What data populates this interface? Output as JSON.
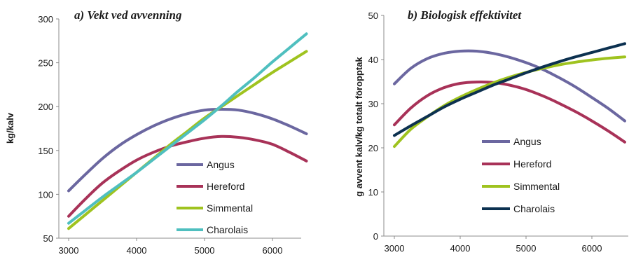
{
  "chart_data": [
    {
      "type": "line",
      "title": "a) Vekt ved avvenning",
      "xlabel": "",
      "ylabel": "kg/kalv",
      "xlim": [
        2900,
        6600
      ],
      "ylim": [
        50,
        300
      ],
      "xticks": [
        "3000",
        "4000",
        "5000",
        "6000"
      ],
      "yticks": [
        "50",
        "100",
        "150",
        "200",
        "250",
        "300"
      ],
      "x": [
        3000,
        3250,
        3500,
        3750,
        4000,
        4250,
        4500,
        4750,
        5000,
        5250,
        5500,
        5750,
        6000,
        6250,
        6500
      ],
      "grid": false,
      "legend_position": "center-right",
      "series": [
        {
          "name": "Angus",
          "color": "#6b67a0",
          "values": [
            104,
            123,
            141,
            156,
            168,
            178,
            186,
            192,
            196,
            197,
            196,
            192,
            186,
            178,
            169
          ]
        },
        {
          "name": "Hereford",
          "color": "#a83258",
          "values": [
            75,
            95,
            113,
            127,
            139,
            148,
            155,
            160,
            164,
            166,
            165,
            162,
            157,
            148,
            138
          ]
        },
        {
          "name": "Simmental",
          "color": "#9fc31f",
          "values": [
            61,
            77,
            93,
            109,
            125,
            141,
            157,
            172,
            187,
            200,
            213,
            226,
            239,
            251,
            263
          ]
        },
        {
          "name": "Charolais",
          "color": "#4fbfbf",
          "values": [
            67,
            82,
            97,
            111,
            125,
            140,
            155,
            170,
            185,
            201,
            218,
            234,
            251,
            267,
            283
          ]
        }
      ]
    },
    {
      "type": "line",
      "title": "b) Biologisk effektivitet",
      "xlabel": "",
      "ylabel": "g avvent kalv/kg totalt föropptak",
      "xlim": [
        2900,
        6600
      ],
      "ylim": [
        0,
        50
      ],
      "xticks": [
        "3000",
        "4000",
        "5000",
        "6000"
      ],
      "yticks": [
        "0",
        "10",
        "20",
        "30",
        "40",
        "50"
      ],
      "x": [
        3000,
        3250,
        3500,
        3750,
        4000,
        4250,
        4500,
        4750,
        5000,
        5250,
        5500,
        5750,
        6000,
        6250,
        6500
      ],
      "grid": false,
      "legend_position": "bottom-center",
      "series": [
        {
          "name": "Angus",
          "color": "#6b67a0",
          "values": [
            34.5,
            38,
            40.2,
            41.4,
            41.9,
            41.9,
            41.4,
            40.5,
            39.3,
            37.8,
            35.9,
            33.8,
            31.4,
            28.9,
            26.1
          ]
        },
        {
          "name": "Hereford",
          "color": "#a83258",
          "values": [
            25.2,
            29,
            31.8,
            33.6,
            34.6,
            34.9,
            34.8,
            34.2,
            33.2,
            31.8,
            30.1,
            28.2,
            26.1,
            23.8,
            21.3
          ]
        },
        {
          "name": "Simmental",
          "color": "#9fc31f",
          "values": [
            20.3,
            24.2,
            27,
            29.5,
            31.5,
            33.2,
            34.7,
            36,
            37.1,
            38,
            38.8,
            39.4,
            39.9,
            40.3,
            40.6
          ]
        },
        {
          "name": "Charolais",
          "color": "#0c3150",
          "values": [
            22.8,
            25,
            27.1,
            29.2,
            31,
            32.6,
            34.2,
            35.6,
            37,
            38.3,
            39.5,
            40.6,
            41.6,
            42.6,
            43.6
          ]
        }
      ]
    }
  ]
}
